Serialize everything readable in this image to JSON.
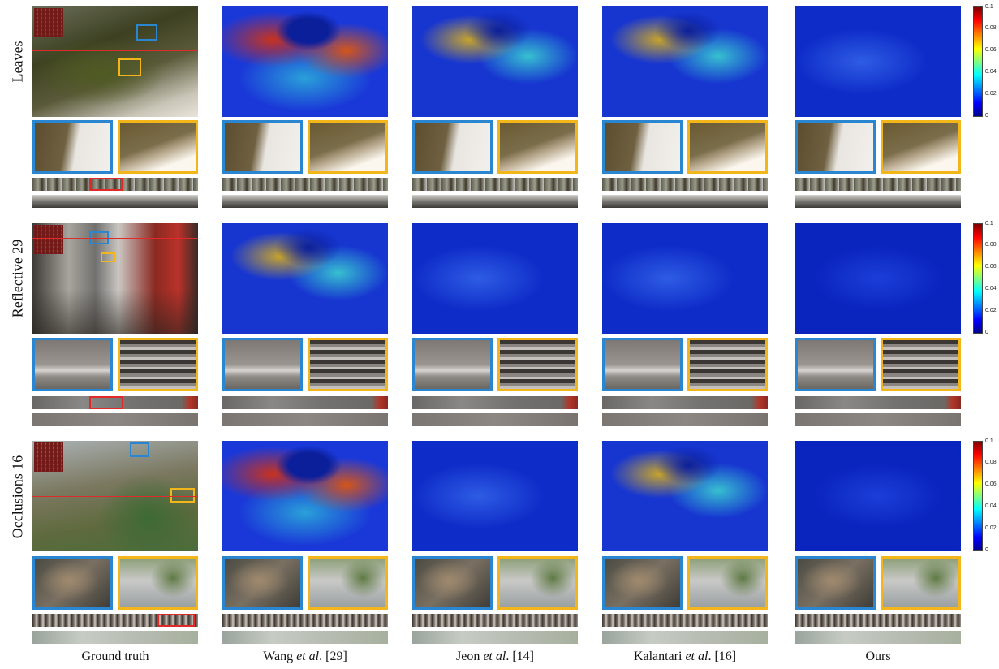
{
  "row_labels": [
    "Leaves",
    "Reflective 29",
    "Occlusions 16"
  ],
  "column_labels": [
    {
      "pre": "Ground truth",
      "italic": "",
      "post": ""
    },
    {
      "pre": "Wang ",
      "italic": "et al",
      "post": ". [29]"
    },
    {
      "pre": "Jeon ",
      "italic": "et al",
      "post": ". [14]"
    },
    {
      "pre": "Kalantari ",
      "italic": "et al",
      "post": ". [16]"
    },
    {
      "pre": "Ours",
      "italic": "",
      "post": ""
    }
  ],
  "colorbar_ticks": [
    "0.1",
    "0.08",
    "0.06",
    "0.04",
    "0.02",
    "0"
  ],
  "colors": {
    "zoom_blue": "#2a86d0",
    "zoom_yellow": "#f2b51a",
    "selection_red": "#e02a2a"
  }
}
